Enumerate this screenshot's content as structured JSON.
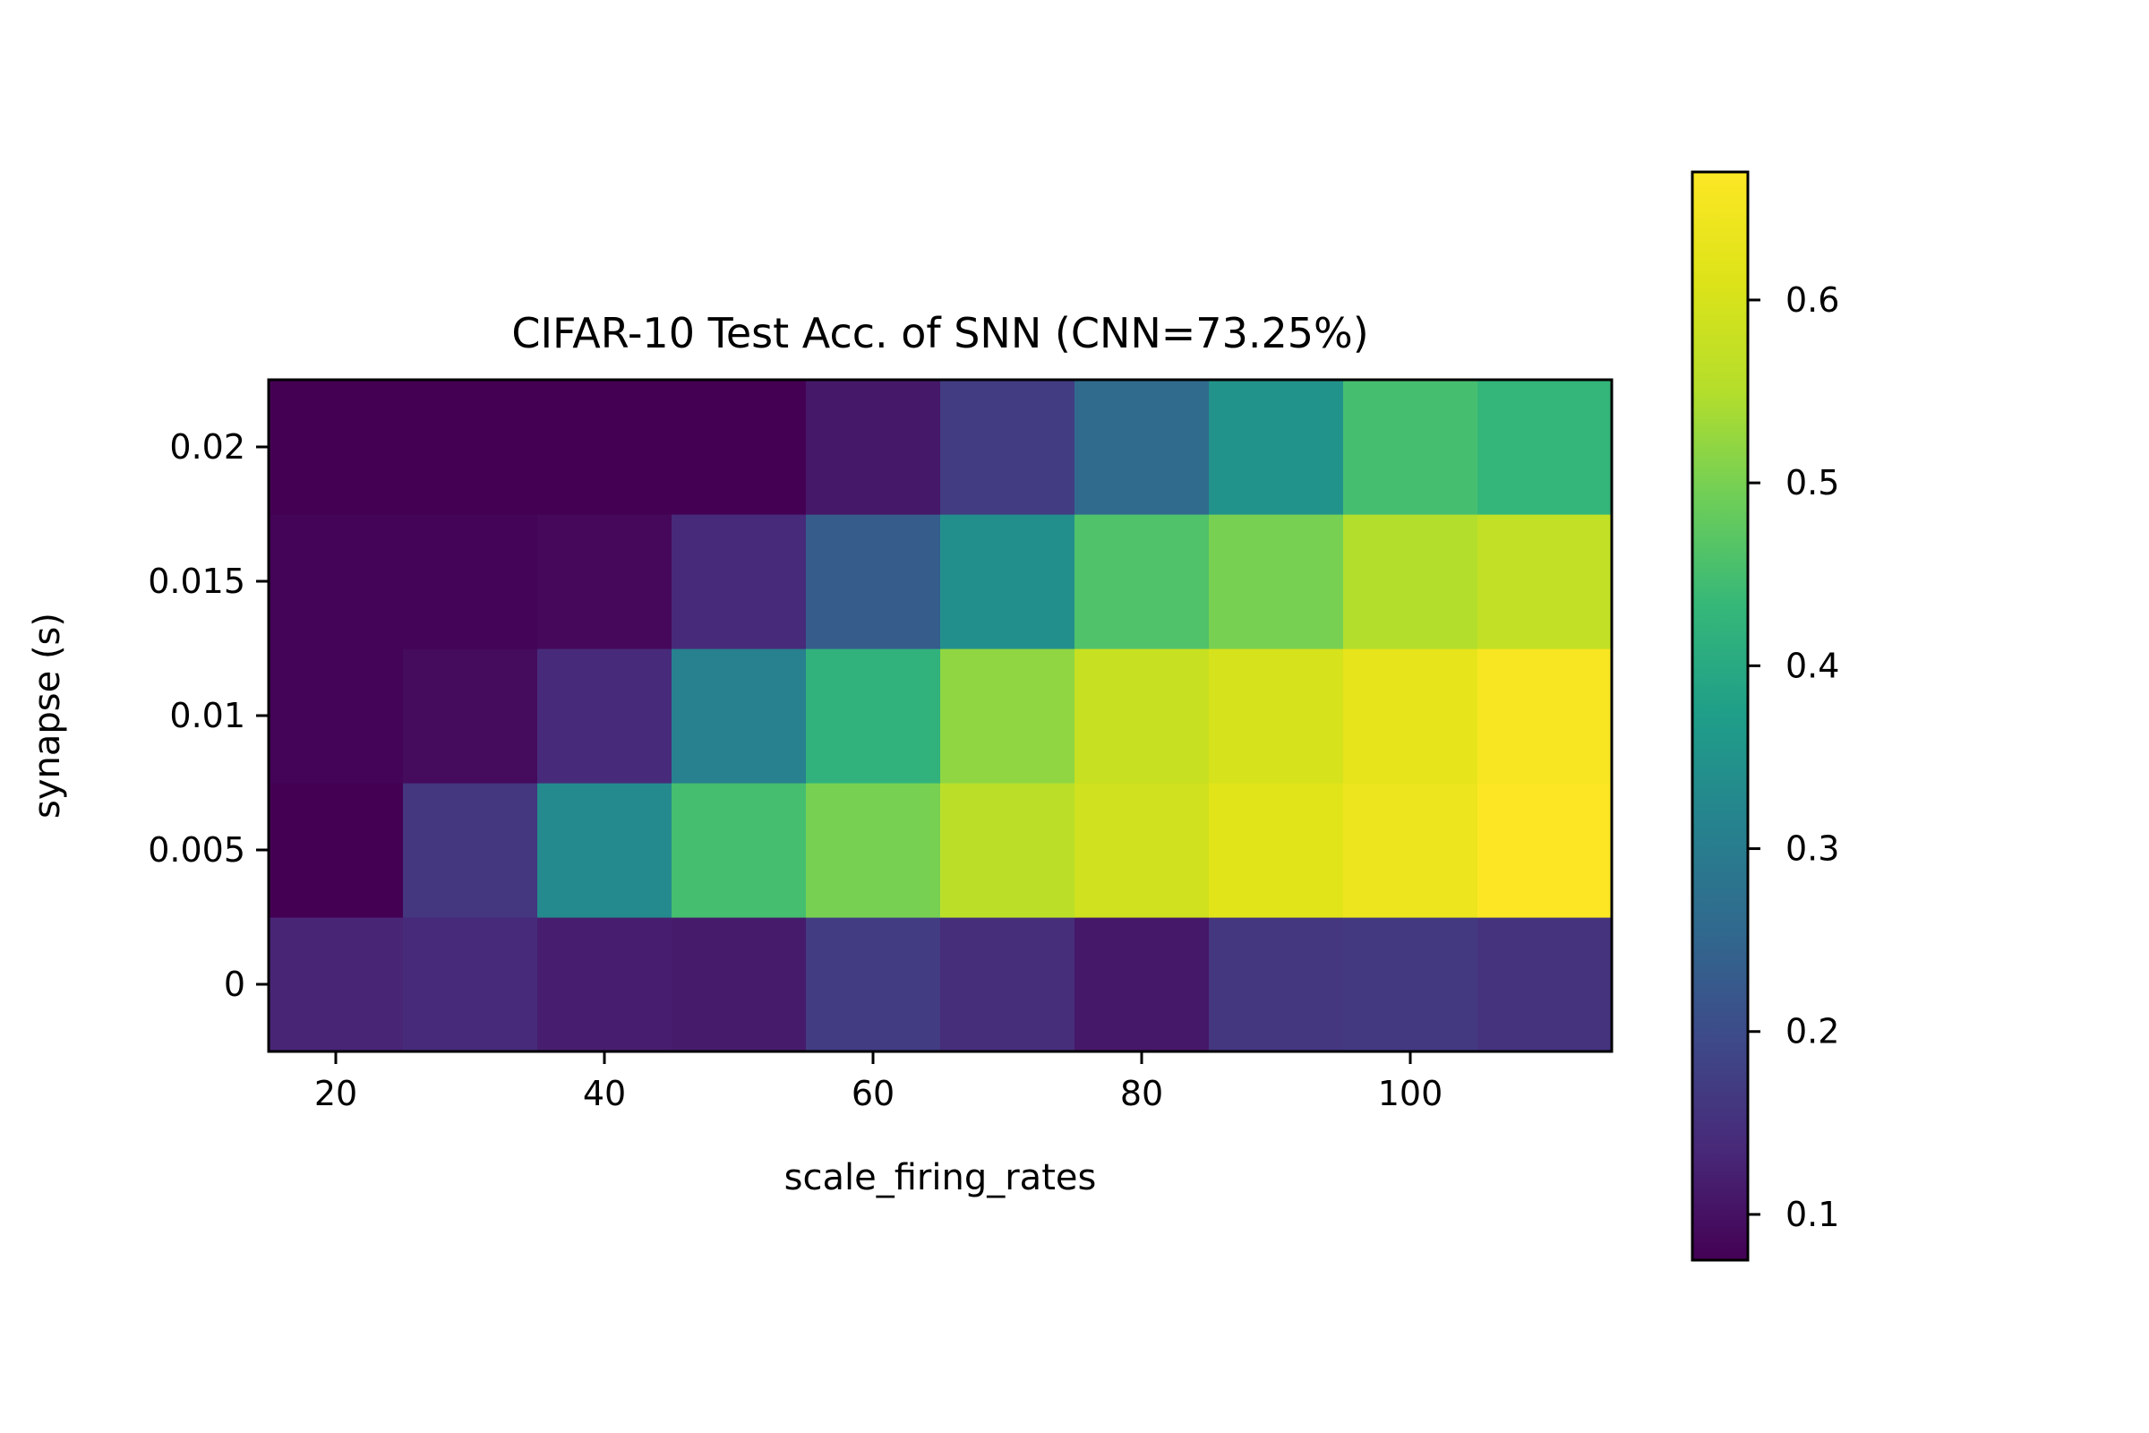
{
  "chart_data": {
    "type": "heatmap",
    "title": "CIFAR-10 Test Acc. of SNN (CNN=73.25%)",
    "xlabel": "scale_firing_rates",
    "ylabel": "synapse (s)",
    "x": [
      20,
      30,
      40,
      50,
      60,
      70,
      80,
      90,
      100,
      110
    ],
    "y": [
      0,
      0.005,
      0.01,
      0.015,
      0.02
    ],
    "x_tick_labels": [
      "20",
      "40",
      "60",
      "80",
      "100"
    ],
    "x_tick_values": [
      20,
      40,
      60,
      80,
      100
    ],
    "y_tick_labels": [
      "0",
      "0.005",
      "0.01",
      "0.015",
      "0.02"
    ],
    "values": [
      [
        0.13,
        0.14,
        0.12,
        0.115,
        0.17,
        0.145,
        0.11,
        0.16,
        0.165,
        0.155
      ],
      [
        0.075,
        0.16,
        0.33,
        0.45,
        0.5,
        0.56,
        0.59,
        0.62,
        0.64,
        0.67
      ],
      [
        0.08,
        0.09,
        0.14,
        0.31,
        0.42,
        0.52,
        0.58,
        0.6,
        0.63,
        0.66
      ],
      [
        0.08,
        0.08,
        0.085,
        0.14,
        0.23,
        0.34,
        0.46,
        0.5,
        0.55,
        0.57
      ],
      [
        0.075,
        0.075,
        0.075,
        0.075,
        0.11,
        0.17,
        0.26,
        0.35,
        0.45,
        0.43
      ]
    ],
    "colormap": "viridis",
    "colorbar": {
      "vmin": 0.075,
      "vmax": 0.67,
      "tick_values": [
        0.1,
        0.2,
        0.3,
        0.4,
        0.5,
        0.6
      ],
      "tick_labels": [
        "0.1",
        "0.2",
        "0.3",
        "0.4",
        "0.5",
        "0.6"
      ]
    }
  }
}
